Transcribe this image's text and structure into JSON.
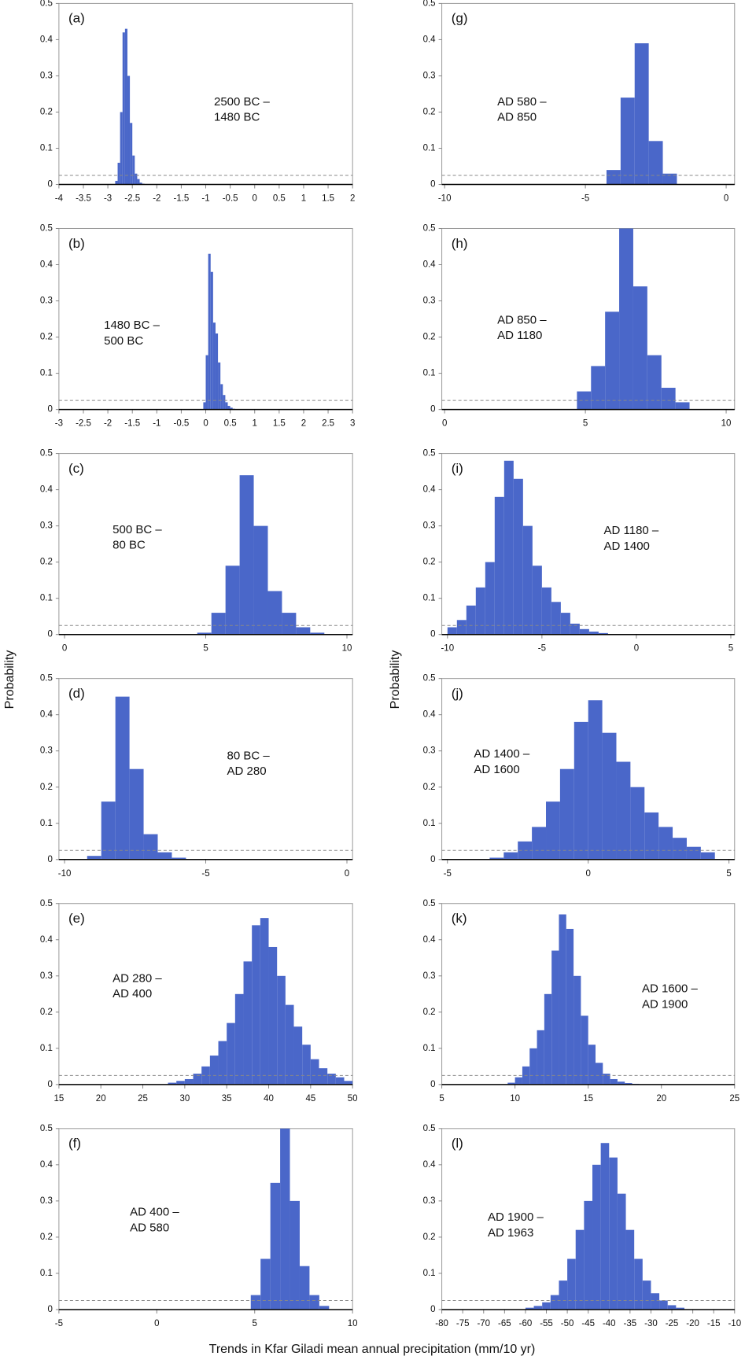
{
  "figure": {
    "y_labels": [
      "Probability",
      "Probability"
    ],
    "x_label": "Trends in Kfar Giladi mean annual precipitation (mm/10 yr)"
  },
  "chart_data": [
    {
      "type": "histogram",
      "panel_label": "(a)",
      "annotation": [
        "2500 BC –",
        "1480 BC"
      ],
      "color": "#4a67c9",
      "bins": [
        -2.85,
        -2.8,
        -2.75,
        -2.7,
        -2.65,
        -2.6,
        -2.55,
        -2.5,
        -2.45,
        -2.4,
        -2.35,
        -2.3,
        -2.25
      ],
      "counts": [
        0.01,
        0.06,
        0.2,
        0.42,
        0.43,
        0.3,
        0.17,
        0.08,
        0.03,
        0.015,
        0.005,
        0.002
      ],
      "xlim": [
        -4,
        2
      ],
      "xticks": [
        -4,
        -3.5,
        -3,
        -2.5,
        -2,
        -1.5,
        -1,
        -0.5,
        0,
        0.5,
        1,
        1.5,
        2
      ],
      "ylim": [
        0,
        0.5
      ],
      "yticks": [
        0,
        0.1,
        0.2,
        0.3,
        0.4,
        0.5
      ],
      "reference_line": 0.025
    },
    {
      "type": "histogram",
      "panel_label": "(b)",
      "annotation": [
        "1480 BC –",
        "500 BC"
      ],
      "color": "#4a67c9",
      "bins": [
        -0.05,
        0,
        0.05,
        0.1,
        0.15,
        0.2,
        0.25,
        0.3,
        0.35,
        0.4,
        0.45,
        0.5,
        0.55,
        0.6
      ],
      "counts": [
        0.02,
        0.15,
        0.43,
        0.38,
        0.24,
        0.21,
        0.13,
        0.07,
        0.04,
        0.02,
        0.01,
        0.005,
        0.002
      ],
      "xlim": [
        -3,
        3
      ],
      "xticks": [
        -3,
        -2.5,
        -2,
        -1.5,
        -1,
        -0.5,
        0,
        0.5,
        1,
        1.5,
        2,
        2.5,
        3
      ],
      "ylim": [
        0,
        0.5
      ],
      "yticks": [
        0,
        0.1,
        0.2,
        0.3,
        0.4,
        0.5
      ],
      "reference_line": 0.025
    },
    {
      "type": "histogram",
      "panel_label": "(c)",
      "annotation": [
        "500 BC –",
        "80 BC"
      ],
      "color": "#4a67c9",
      "bins": [
        4.7,
        5.2,
        5.7,
        6.2,
        6.7,
        7.2,
        7.7,
        8.2,
        8.7,
        9.2
      ],
      "counts": [
        0.005,
        0.06,
        0.19,
        0.44,
        0.3,
        0.12,
        0.06,
        0.02,
        0.005
      ],
      "xlim": [
        -0.2,
        10.2
      ],
      "xticks": [
        0,
        5,
        10
      ],
      "ylim": [
        0,
        0.5
      ],
      "yticks": [
        0,
        0.1,
        0.2,
        0.3,
        0.4,
        0.5
      ],
      "reference_line": 0.025
    },
    {
      "type": "histogram",
      "panel_label": "(d)",
      "annotation": [
        "80 BC –",
        "AD 280"
      ],
      "color": "#4a67c9",
      "bins": [
        -9.2,
        -8.7,
        -8.2,
        -7.7,
        -7.2,
        -6.7,
        -6.2,
        -5.7
      ],
      "counts": [
        0.01,
        0.16,
        0.45,
        0.25,
        0.07,
        0.02,
        0.005
      ],
      "xlim": [
        -10.2,
        0.2
      ],
      "xticks": [
        -10,
        -5,
        0
      ],
      "ylim": [
        0,
        0.5
      ],
      "yticks": [
        0,
        0.1,
        0.2,
        0.3,
        0.4,
        0.5
      ],
      "reference_line": 0.025
    },
    {
      "type": "histogram",
      "panel_label": "(e)",
      "annotation": [
        "AD 280 –",
        "AD 400"
      ],
      "color": "#4a67c9",
      "bins": [
        28,
        29,
        30,
        31,
        32,
        33,
        34,
        35,
        36,
        37,
        38,
        39,
        40,
        41,
        42,
        43,
        44,
        45,
        46,
        47,
        48,
        49,
        50
      ],
      "counts": [
        0.005,
        0.01,
        0.015,
        0.03,
        0.05,
        0.08,
        0.12,
        0.17,
        0.25,
        0.34,
        0.44,
        0.46,
        0.38,
        0.3,
        0.22,
        0.16,
        0.11,
        0.07,
        0.045,
        0.03,
        0.02,
        0.01
      ],
      "xlim": [
        15,
        50
      ],
      "xticks": [
        15,
        20,
        25,
        30,
        35,
        40,
        45,
        50
      ],
      "ylim": [
        0,
        0.5
      ],
      "yticks": [
        0,
        0.1,
        0.2,
        0.3,
        0.4,
        0.5
      ],
      "reference_line": 0.025
    },
    {
      "type": "histogram",
      "panel_label": "(f)",
      "annotation": [
        "AD 400 –",
        "AD 580"
      ],
      "color": "#4a67c9",
      "bins": [
        4.8,
        5.3,
        5.8,
        6.3,
        6.8,
        7.3,
        7.8,
        8.3,
        8.8
      ],
      "counts": [
        0.04,
        0.14,
        0.35,
        0.5,
        0.3,
        0.12,
        0.04,
        0.01
      ],
      "xlim": [
        -5,
        10
      ],
      "xticks": [
        -5,
        0,
        5,
        10
      ],
      "ylim": [
        0,
        0.5
      ],
      "yticks": [
        0,
        0.1,
        0.2,
        0.3,
        0.4,
        0.5
      ],
      "reference_line": 0.025
    },
    {
      "type": "histogram",
      "panel_label": "(g)",
      "annotation": [
        "AD 580 –",
        "AD 850"
      ],
      "color": "#4a67c9",
      "bins": [
        -4.25,
        -3.75,
        -3.25,
        -2.75,
        -2.25,
        -1.75
      ],
      "counts": [
        0.04,
        0.24,
        0.39,
        0.12,
        0.03
      ],
      "xlim": [
        -10.1,
        0.3
      ],
      "xticks": [
        -10,
        -5,
        0
      ],
      "ylim": [
        0,
        0.5
      ],
      "yticks": [
        0,
        0.1,
        0.2,
        0.3,
        0.4,
        0.5
      ],
      "reference_line": 0.025
    },
    {
      "type": "histogram",
      "panel_label": "(h)",
      "annotation": [
        "AD 850 –",
        "AD 1180"
      ],
      "color": "#4a67c9",
      "bins": [
        4.7,
        5.2,
        5.7,
        6.2,
        6.7,
        7.2,
        7.7,
        8.2,
        8.7
      ],
      "counts": [
        0.05,
        0.12,
        0.27,
        0.5,
        0.34,
        0.15,
        0.06,
        0.02
      ],
      "xlim": [
        -0.1,
        10.3
      ],
      "xticks": [
        0,
        5,
        10
      ],
      "ylim": [
        0,
        0.5
      ],
      "yticks": [
        0,
        0.1,
        0.2,
        0.3,
        0.4,
        0.5
      ],
      "reference_line": 0.025
    },
    {
      "type": "histogram",
      "panel_label": "(i)",
      "annotation": [
        "AD 1180 –",
        "AD 1400"
      ],
      "color": "#4a67c9",
      "bins": [
        -10,
        -9.5,
        -9,
        -8.5,
        -8,
        -7.5,
        -7,
        -6.5,
        -6,
        -5.5,
        -5,
        -4.5,
        -4,
        -3.5,
        -3,
        -2.5,
        -2,
        -1.5
      ],
      "counts": [
        0.02,
        0.04,
        0.08,
        0.13,
        0.2,
        0.38,
        0.48,
        0.43,
        0.3,
        0.19,
        0.13,
        0.09,
        0.06,
        0.03,
        0.015,
        0.008,
        0.004
      ],
      "xlim": [
        -10.3,
        5.2
      ],
      "xticks": [
        -10,
        -5,
        0,
        5
      ],
      "ylim": [
        0,
        0.5
      ],
      "yticks": [
        0,
        0.1,
        0.2,
        0.3,
        0.4,
        0.5
      ],
      "reference_line": 0.025
    },
    {
      "type": "histogram",
      "panel_label": "(j)",
      "annotation": [
        "AD 1400 –",
        "AD 1600"
      ],
      "color": "#4a67c9",
      "bins": [
        -3.5,
        -3,
        -2.5,
        -2,
        -1.5,
        -1,
        -0.5,
        0,
        0.5,
        1,
        1.5,
        2,
        2.5,
        3,
        3.5,
        4,
        4.5
      ],
      "counts": [
        0.005,
        0.02,
        0.05,
        0.09,
        0.16,
        0.25,
        0.38,
        0.44,
        0.35,
        0.27,
        0.2,
        0.13,
        0.09,
        0.06,
        0.035,
        0.02
      ],
      "xlim": [
        -5.2,
        5.2
      ],
      "xticks": [
        -5,
        0,
        5
      ],
      "ylim": [
        0,
        0.5
      ],
      "yticks": [
        0,
        0.1,
        0.2,
        0.3,
        0.4,
        0.5
      ],
      "reference_line": 0.025
    },
    {
      "type": "histogram",
      "panel_label": "(k)",
      "annotation": [
        "AD 1600 –",
        "AD 1900"
      ],
      "color": "#4a67c9",
      "bins": [
        9.5,
        10,
        10.5,
        11,
        11.5,
        12,
        12.5,
        13,
        13.5,
        14,
        14.5,
        15,
        15.5,
        16,
        16.5,
        17,
        17.5,
        18,
        18.5
      ],
      "counts": [
        0.005,
        0.02,
        0.05,
        0.1,
        0.15,
        0.25,
        0.37,
        0.47,
        0.43,
        0.3,
        0.19,
        0.11,
        0.06,
        0.03,
        0.015,
        0.008,
        0.004,
        0.002
      ],
      "xlim": [
        5,
        25
      ],
      "xticks": [
        5,
        10,
        15,
        20,
        25
      ],
      "ylim": [
        0,
        0.5
      ],
      "yticks": [
        0,
        0.1,
        0.2,
        0.3,
        0.4,
        0.5
      ],
      "reference_line": 0.025
    },
    {
      "type": "histogram",
      "panel_label": "(l)",
      "annotation": [
        "AD 1900 –",
        "AD 1963"
      ],
      "color": "#4a67c9",
      "bins": [
        -60,
        -58,
        -56,
        -54,
        -52,
        -50,
        -48,
        -46,
        -44,
        -42,
        -40,
        -38,
        -36,
        -34,
        -32,
        -30,
        -28,
        -26,
        -24,
        -22
      ],
      "counts": [
        0.005,
        0.01,
        0.02,
        0.04,
        0.08,
        0.14,
        0.22,
        0.3,
        0.4,
        0.46,
        0.42,
        0.32,
        0.22,
        0.14,
        0.08,
        0.045,
        0.025,
        0.012,
        0.005
      ],
      "xlim": [
        -80,
        -10
      ],
      "xticks": [
        -80,
        -75,
        -70,
        -65,
        -60,
        -55,
        -50,
        -45,
        -40,
        -35,
        -30,
        -25,
        -20,
        -15,
        -10
      ],
      "ylim": [
        0,
        0.5
      ],
      "yticks": [
        0,
        0.1,
        0.2,
        0.3,
        0.4,
        0.5
      ],
      "reference_line": 0.025
    }
  ]
}
